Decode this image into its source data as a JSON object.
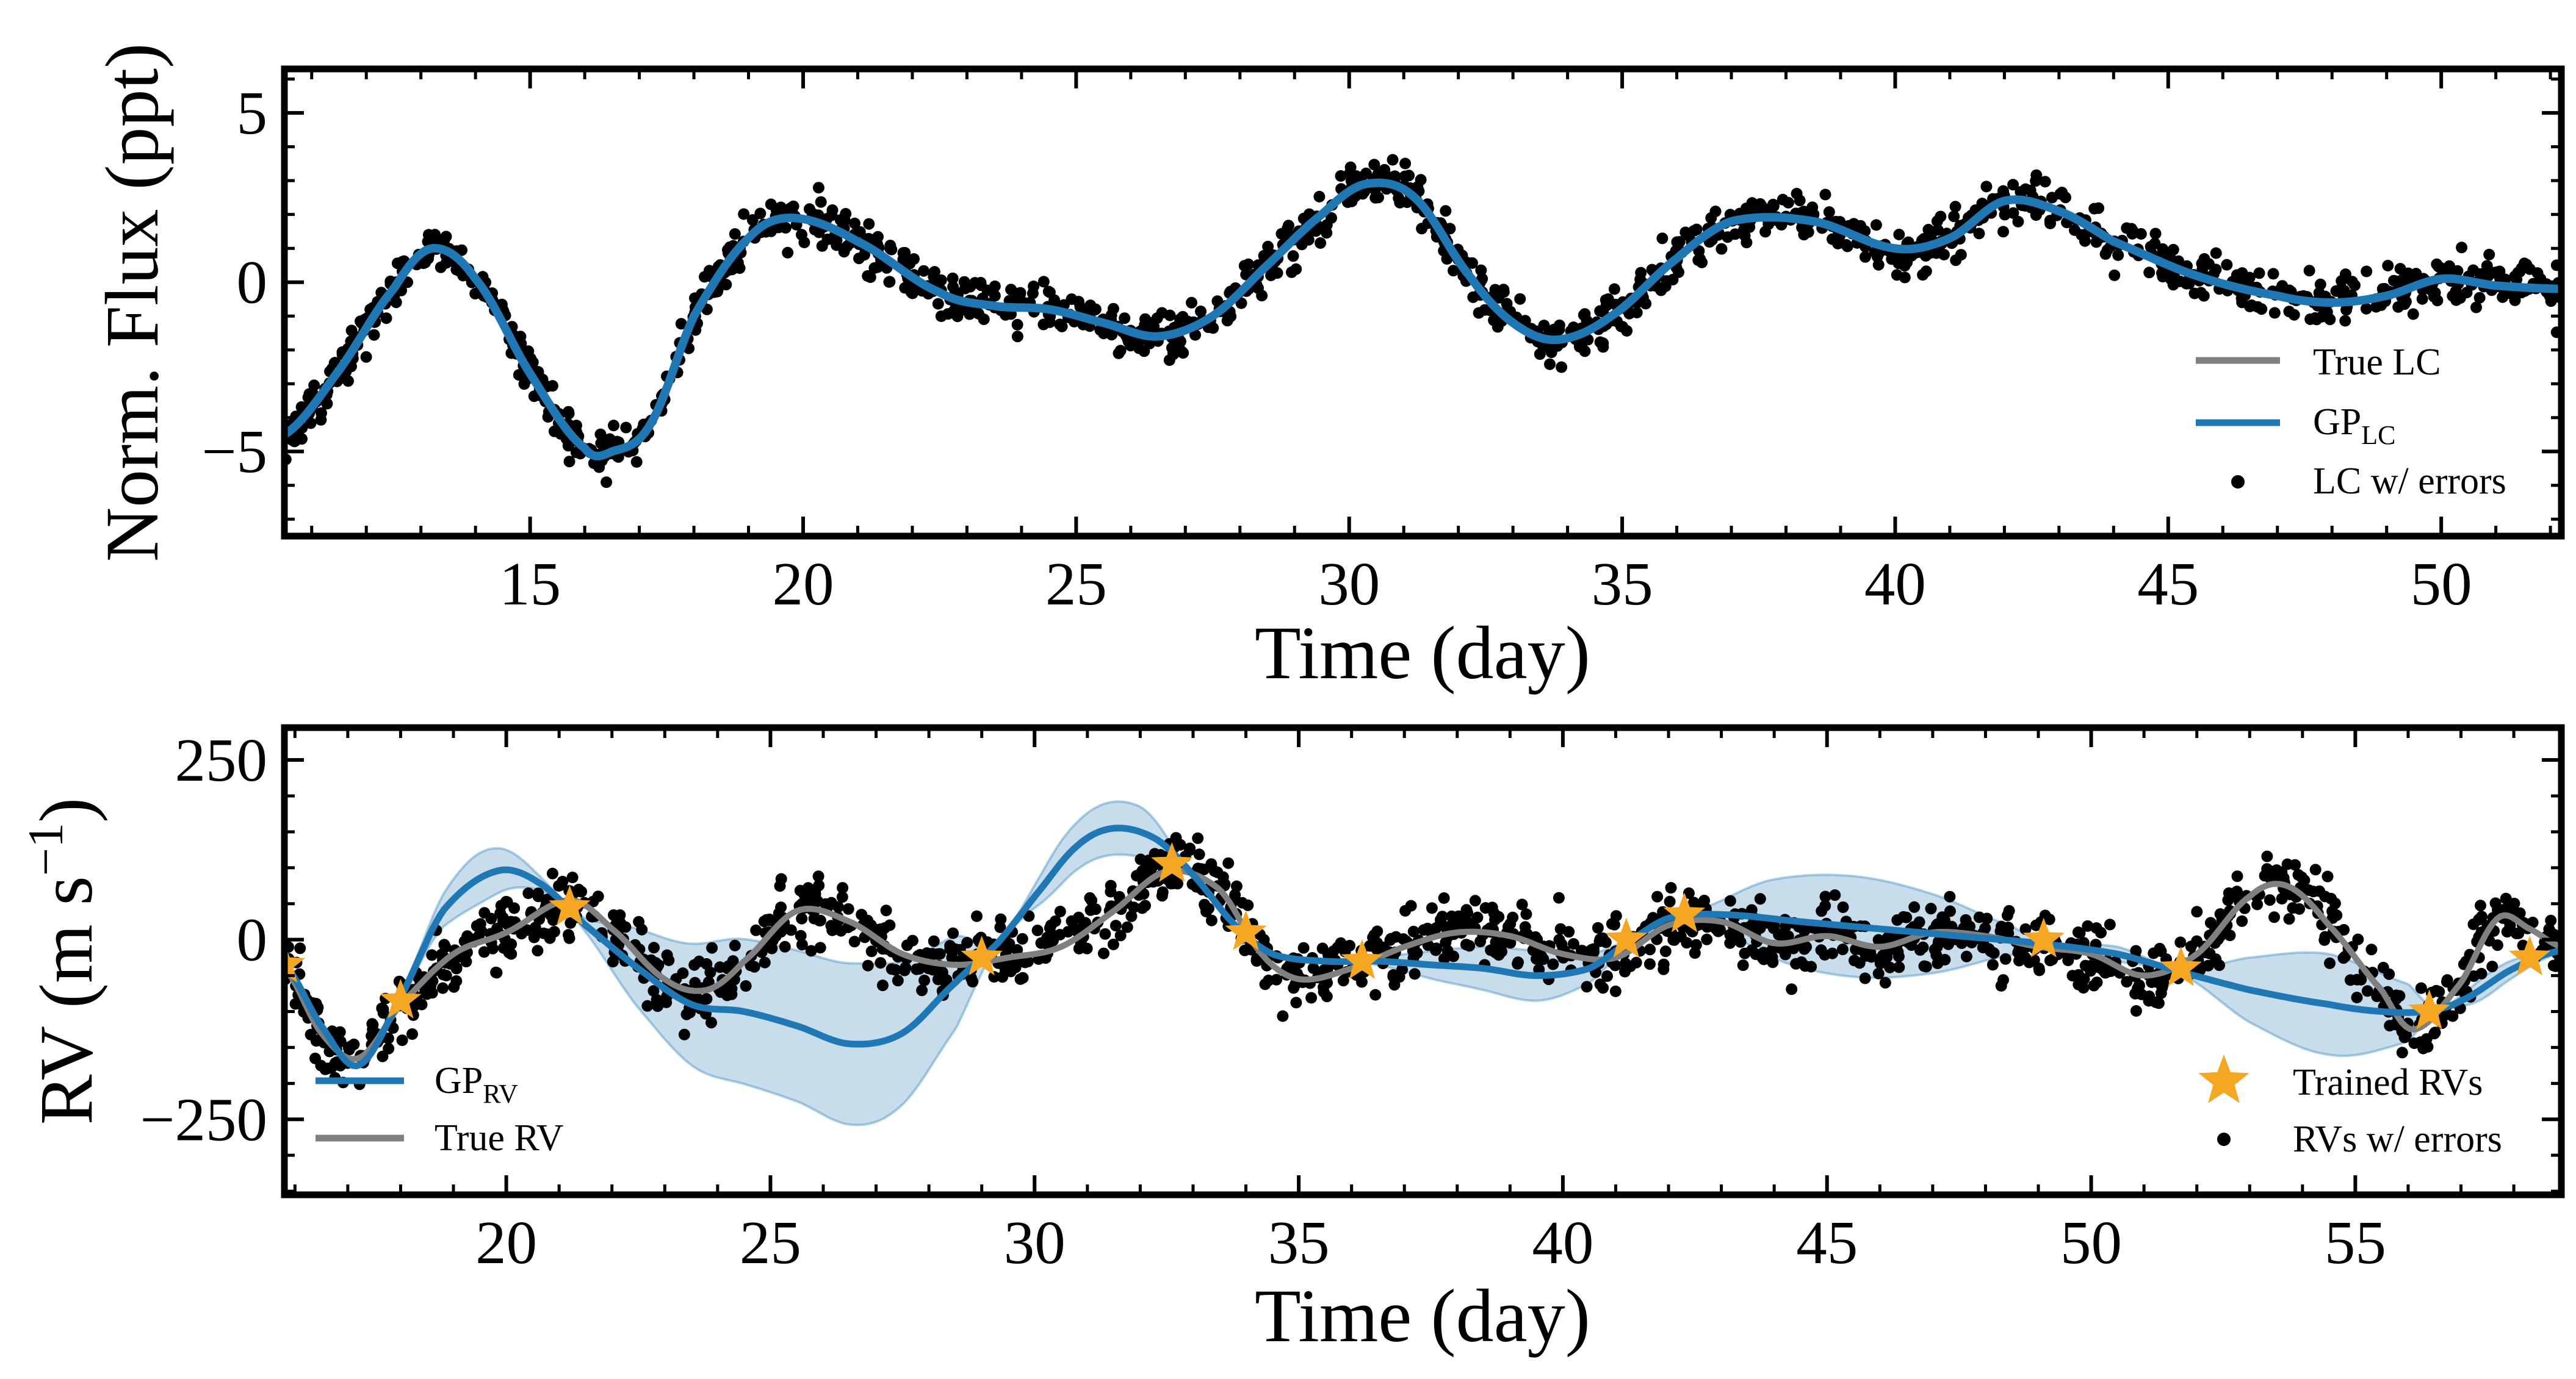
{
  "colors": {
    "gp": "#1f77b4",
    "gp_band": "#1f77b4",
    "truth": "#808080",
    "points": "#000000",
    "stars": "#f5a623"
  },
  "chart_data": [
    {
      "type": "line",
      "panel": "top",
      "xlabel": "Time (day)",
      "ylabel": "Norm. Flux (ppt)",
      "xlim": [
        10.5,
        52.2
      ],
      "ylim": [
        -7.5,
        6.3
      ],
      "xticks": [
        15,
        20,
        25,
        30,
        35,
        40,
        45,
        50
      ],
      "yticks": [
        -5,
        0,
        5
      ],
      "ytick_labels": [
        "−5",
        "0",
        "5"
      ],
      "grid": false,
      "legend_position": "lower-right",
      "legend": [
        {
          "label": "True LC",
          "kind": "line",
          "color": "#808080"
        },
        {
          "label": "GP",
          "sub": "LC",
          "kind": "line",
          "color": "#1f77b4"
        },
        {
          "label": "LC w/ errors",
          "kind": "point",
          "color": "#000000"
        }
      ],
      "x_range": [
        10.5,
        52.2
      ],
      "noise": 0.35,
      "n_points": 1400,
      "series": [
        {
          "name": "True LC",
          "x": [
            10.5,
            11.5,
            12.5,
            13.2,
            14.0,
            15.0,
            16.0,
            16.5,
            17.2,
            18.0,
            19.0,
            19.8,
            21.0,
            22.5,
            23.5,
            24.5,
            25.5,
            26.5,
            27.5,
            28.5,
            29.5,
            30.3,
            31.2,
            32.2,
            33.0,
            33.8,
            34.8,
            36.0,
            37.0,
            38.5,
            40.0,
            41.0,
            42.0,
            43.0,
            44.0,
            45.5,
            47.0,
            48.0,
            49.0,
            50.0,
            51.0,
            52.2
          ],
          "y": [
            -4.5,
            -2.6,
            -0.2,
            1.0,
            0.1,
            -2.7,
            -4.9,
            -5.0,
            -4.2,
            -1.0,
            1.3,
            1.9,
            1.2,
            -0.3,
            -0.7,
            -0.8,
            -1.2,
            -1.6,
            -1.0,
            0.5,
            2.0,
            2.9,
            2.5,
            0.2,
            -1.2,
            -1.7,
            -1.0,
            0.7,
            1.8,
            1.8,
            1.0,
            1.3,
            2.4,
            2.1,
            1.2,
            0.2,
            -0.4,
            -0.6,
            -0.4,
            0.1,
            -0.1,
            -0.2
          ]
        },
        {
          "name": "GP",
          "x": [
            10.5,
            11.5,
            12.5,
            13.2,
            14.0,
            15.0,
            16.0,
            16.5,
            17.2,
            18.0,
            19.0,
            19.8,
            21.0,
            22.5,
            23.5,
            24.5,
            25.5,
            26.5,
            27.5,
            28.5,
            29.5,
            30.3,
            31.2,
            32.2,
            33.0,
            33.8,
            34.8,
            36.0,
            37.0,
            38.5,
            40.0,
            41.0,
            42.0,
            43.0,
            44.0,
            45.5,
            47.0,
            48.0,
            49.0,
            50.0,
            51.0,
            52.2
          ],
          "y": [
            -4.5,
            -2.6,
            -0.2,
            1.0,
            0.1,
            -2.7,
            -4.9,
            -5.0,
            -4.2,
            -1.0,
            1.3,
            1.9,
            1.2,
            -0.3,
            -0.7,
            -0.8,
            -1.2,
            -1.6,
            -1.0,
            0.5,
            2.0,
            2.9,
            2.5,
            0.2,
            -1.2,
            -1.7,
            -1.0,
            0.7,
            1.8,
            1.8,
            1.0,
            1.3,
            2.4,
            2.1,
            1.2,
            0.2,
            -0.4,
            -0.6,
            -0.4,
            0.1,
            -0.1,
            -0.2
          ]
        }
      ]
    },
    {
      "type": "line",
      "panel": "bottom",
      "xlabel": "Time (day)",
      "ylabel": "RV (m s⁻¹)",
      "ylabel_main": "RV (m s",
      "ylabel_sup": "−1",
      "ylabel_close": ")",
      "xlim": [
        15.8,
        58.9
      ],
      "ylim": [
        -355,
        295
      ],
      "xticks": [
        20,
        25,
        30,
        35,
        40,
        45,
        50,
        55
      ],
      "yticks": [
        -250,
        0,
        250
      ],
      "ytick_labels": [
        "−250",
        "0",
        "250"
      ],
      "grid": false,
      "legend_position": "lower-left and lower-right",
      "legend_left": [
        {
          "label": "GP",
          "sub": "RV",
          "kind": "line",
          "color": "#1f77b4"
        },
        {
          "label": "True RV",
          "kind": "line",
          "color": "#808080"
        }
      ],
      "legend_right": [
        {
          "label": "Trained RVs",
          "kind": "star",
          "color": "#f5a623"
        },
        {
          "label": "RVs w/ errors",
          "kind": "point",
          "color": "#000000"
        }
      ],
      "x_range": [
        15.8,
        58.9
      ],
      "noise": 22,
      "n_points": 1500,
      "series": [
        {
          "name": "True RV",
          "x": [
            15.8,
            16.5,
            17.2,
            18.0,
            19.0,
            20.0,
            21.2,
            22.0,
            23.0,
            23.8,
            24.5,
            25.5,
            26.5,
            27.5,
            28.5,
            29.5,
            30.5,
            31.5,
            32.5,
            33.5,
            34.3,
            35.0,
            36.0,
            37.0,
            38.0,
            39.0,
            40.0,
            41.0,
            42.0,
            43.0,
            44.0,
            45.0,
            46.0,
            47.0,
            48.0,
            49.0,
            50.0,
            51.0,
            52.0,
            53.0,
            53.7,
            54.5,
            55.5,
            56.1,
            57.0,
            57.7,
            58.3,
            58.9
          ],
          "y": [
            -40,
            -130,
            -165,
            -90,
            -20,
            10,
            55,
            15,
            -55,
            -70,
            -30,
            40,
            25,
            -20,
            -35,
            -25,
            -10,
            40,
            95,
            70,
            -20,
            -55,
            -40,
            -10,
            10,
            5,
            -20,
            -25,
            20,
            25,
            -5,
            5,
            -10,
            10,
            5,
            -10,
            -20,
            -50,
            -20,
            60,
            75,
            20,
            -70,
            -125,
            -60,
            30,
            15,
            -10
          ]
        },
        {
          "name": "GP",
          "x": [
            15.8,
            16.5,
            17.2,
            18.0,
            18.8,
            19.8,
            20.6,
            21.5,
            22.5,
            23.5,
            24.5,
            25.5,
            26.5,
            27.5,
            28.5,
            29.3,
            30.0,
            30.8,
            31.5,
            32.3,
            33.0,
            33.8,
            34.5,
            35.5,
            36.5,
            37.5,
            38.5,
            39.5,
            40.5,
            41.2,
            42.0,
            43.0,
            44.5,
            46.0,
            47.5,
            49.0,
            50.5,
            51.7,
            53.0,
            54.5,
            55.5,
            56.3,
            57.0,
            58.0,
            58.9
          ],
          "y": [
            -35,
            -120,
            -175,
            -80,
            40,
            95,
            80,
            20,
            -40,
            -90,
            -100,
            -120,
            -145,
            -130,
            -60,
            -5,
            60,
            130,
            155,
            140,
            90,
            20,
            -20,
            -30,
            -30,
            -35,
            -40,
            -50,
            -40,
            -5,
            30,
            35,
            25,
            15,
            5,
            -5,
            -20,
            -45,
            -70,
            -90,
            -100,
            -100,
            -85,
            -40,
            -15
          ]
        }
      ],
      "gp_band_halfwidth": {
        "x": [
          15.8,
          18.0,
          19.5,
          21.2,
          22.5,
          24.0,
          25.5,
          27.0,
          28.5,
          29.3,
          30.5,
          32.0,
          32.8,
          34.3,
          36.2,
          38.0,
          39.5,
          40.5,
          41.3,
          42.5,
          44.0,
          45.5,
          47.0,
          48.5,
          49.2,
          50.5,
          51.7,
          53.0,
          54.5,
          56.0,
          56.5,
          57.5,
          58.9
        ],
        "y": [
          3,
          3,
          35,
          3,
          55,
          95,
          105,
          110,
          65,
          3,
          30,
          35,
          3,
          3,
          3,
          25,
          35,
          20,
          3,
          5,
          55,
          70,
          55,
          20,
          3,
          10,
          3,
          45,
          70,
          40,
          3,
          15,
          3
        ]
      },
      "trained_points": {
        "x": [
          15.8,
          18.0,
          21.2,
          29.0,
          32.6,
          34.0,
          36.2,
          41.2,
          42.3,
          49.1,
          51.7,
          56.4,
          58.3
        ],
        "y": [
          -35,
          -85,
          45,
          -25,
          105,
          10,
          -30,
          0,
          35,
          0,
          -40,
          -100,
          -25
        ]
      }
    }
  ]
}
